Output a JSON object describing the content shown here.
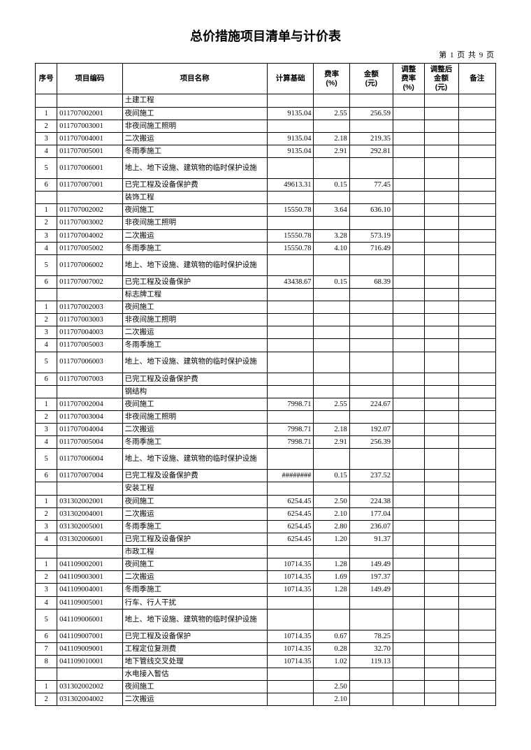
{
  "title": "总价措施项目清单与计价表",
  "page_indicator": "第 1 页 共 9 页",
  "columns": [
    "序号",
    "项目编码",
    "项目名称",
    "计算基础",
    "费率\n(%)",
    "金额\n(元)",
    "调整\n费率\n(%)",
    "调整后\n金额\n(元)",
    "备注"
  ],
  "col_align": [
    "center",
    "left",
    "left",
    "right",
    "right",
    "right",
    "right",
    "right",
    "left"
  ],
  "rows": [
    [
      "",
      "",
      "土建工程",
      "",
      "",
      "",
      "",
      "",
      ""
    ],
    [
      "1",
      "011707002001",
      "夜间施工",
      "9135.04",
      "2.55",
      "256.59",
      "",
      "",
      ""
    ],
    [
      "2",
      "011707003001",
      "非夜间施工照明",
      "",
      "",
      "",
      "",
      "",
      ""
    ],
    [
      "3",
      "011707004001",
      "二次搬运",
      "9135.04",
      "2.18",
      "219.35",
      "",
      "",
      ""
    ],
    [
      "4",
      "011707005001",
      "冬雨季施工",
      "9135.04",
      "2.91",
      "292.81",
      "",
      "",
      ""
    ],
    [
      "5",
      "011707006001",
      "地上、地下设施、建筑物的临时保护设施",
      "",
      "",
      "",
      "",
      "",
      ""
    ],
    [
      "6",
      "011707007001",
      "已完工程及设备保护费",
      "49613.31",
      "0.15",
      "77.45",
      "",
      "",
      ""
    ],
    [
      "",
      "",
      "装饰工程",
      "",
      "",
      "",
      "",
      "",
      ""
    ],
    [
      "1",
      "011707002002",
      "夜间施工",
      "15550.78",
      "3.64",
      "636.10",
      "",
      "",
      ""
    ],
    [
      "2",
      "011707003002",
      "非夜间施工照明",
      "",
      "",
      "",
      "",
      "",
      ""
    ],
    [
      "3",
      "011707004002",
      "二次搬运",
      "15550.78",
      "3.28",
      "573.19",
      "",
      "",
      ""
    ],
    [
      "4",
      "011707005002",
      "冬雨季施工",
      "15550.78",
      "4.10",
      "716.49",
      "",
      "",
      ""
    ],
    [
      "5",
      "011707006002",
      "地上、地下设施、建筑物的临时保护设施",
      "",
      "",
      "",
      "",
      "",
      ""
    ],
    [
      "6",
      "011707007002",
      "已完工程及设备保护",
      "43438.67",
      "0.15",
      "68.39",
      "",
      "",
      ""
    ],
    [
      "",
      "",
      "标志牌工程",
      "",
      "",
      "",
      "",
      "",
      ""
    ],
    [
      "1",
      "011707002003",
      "夜间施工",
      "",
      "",
      "",
      "",
      "",
      ""
    ],
    [
      "2",
      "011707003003",
      "非夜间施工照明",
      "",
      "",
      "",
      "",
      "",
      ""
    ],
    [
      "3",
      "011707004003",
      "二次搬运",
      "",
      "",
      "",
      "",
      "",
      ""
    ],
    [
      "4",
      "011707005003",
      "冬雨季施工",
      "",
      "",
      "",
      "",
      "",
      ""
    ],
    [
      "5",
      "011707006003",
      "地上、地下设施、建筑物的临时保护设施",
      "",
      "",
      "",
      "",
      "",
      ""
    ],
    [
      "6",
      "011707007003",
      "已完工程及设备保护费",
      "",
      "",
      "",
      "",
      "",
      ""
    ],
    [
      "",
      "",
      "钢结构",
      "",
      "",
      "",
      "",
      "",
      ""
    ],
    [
      "1",
      "011707002004",
      "夜间施工",
      "7998.71",
      "2.55",
      "224.67",
      "",
      "",
      ""
    ],
    [
      "2",
      "011707003004",
      "非夜间施工照明",
      "",
      "",
      "",
      "",
      "",
      ""
    ],
    [
      "3",
      "011707004004",
      "二次搬运",
      "7998.71",
      "2.18",
      "192.07",
      "",
      "",
      ""
    ],
    [
      "4",
      "011707005004",
      "冬雨季施工",
      "7998.71",
      "2.91",
      "256.39",
      "",
      "",
      ""
    ],
    [
      "5",
      "011707006004",
      "地上、地下设施、建筑物的临时保护设施",
      "",
      "",
      "",
      "",
      "",
      ""
    ],
    [
      "6",
      "011707007004",
      "已完工程及设备保护费",
      "########",
      "0.15",
      "237.52",
      "",
      "",
      ""
    ],
    [
      "",
      "",
      "安装工程",
      "",
      "",
      "",
      "",
      "",
      ""
    ],
    [
      "1",
      "031302002001",
      "夜间施工",
      "6254.45",
      "2.50",
      "224.38",
      "",
      "",
      ""
    ],
    [
      "2",
      "031302004001",
      "二次搬运",
      "6254.45",
      "2.10",
      "177.04",
      "",
      "",
      ""
    ],
    [
      "3",
      "031302005001",
      "冬雨季施工",
      "6254.45",
      "2.80",
      "236.07",
      "",
      "",
      ""
    ],
    [
      "4",
      "031302006001",
      "已完工程及设备保护",
      "6254.45",
      "1.20",
      "91.37",
      "",
      "",
      ""
    ],
    [
      "",
      "",
      "市政工程",
      "",
      "",
      "",
      "",
      "",
      ""
    ],
    [
      "1",
      "041109002001",
      "夜间施工",
      "10714.35",
      "1.28",
      "149.49",
      "",
      "",
      ""
    ],
    [
      "2",
      "041109003001",
      "二次搬运",
      "10714.35",
      "1.69",
      "197.37",
      "",
      "",
      ""
    ],
    [
      "3",
      "041109004001",
      "冬雨季施工",
      "10714.35",
      "1.28",
      "149.49",
      "",
      "",
      ""
    ],
    [
      "4",
      "041109005001",
      "行车、行人干扰",
      "",
      "",
      "",
      "",
      "",
      ""
    ],
    [
      "5",
      "041109006001",
      "地上、地下设施、建筑物的临时保护设施",
      "",
      "",
      "",
      "",
      "",
      ""
    ],
    [
      "6",
      "041109007001",
      "已完工程及设备保护",
      "10714.35",
      "0.67",
      "78.25",
      "",
      "",
      ""
    ],
    [
      "7",
      "041109009001",
      "工程定位复测费",
      "10714.35",
      "0.28",
      "32.70",
      "",
      "",
      ""
    ],
    [
      "8",
      "041109010001",
      "地下管线交叉处理",
      "10714.35",
      "1.02",
      "119.13",
      "",
      "",
      ""
    ],
    [
      "",
      "",
      "水电接入暂估",
      "",
      "",
      "",
      "",
      "",
      ""
    ],
    [
      "1",
      "031302002002",
      "夜间施工",
      "",
      "2.50",
      "",
      "",
      "",
      ""
    ],
    [
      "2",
      "031302004002",
      "二次搬运",
      "",
      "2.10",
      "",
      "",
      "",
      ""
    ]
  ],
  "two_line_rows": [
    5,
    12,
    19,
    26,
    38
  ],
  "colors": {
    "background": "#ffffff",
    "text": "#000000",
    "border": "#000000"
  },
  "font_sizes": {
    "title": 18,
    "body": 10.5,
    "page_indicator": 11
  }
}
